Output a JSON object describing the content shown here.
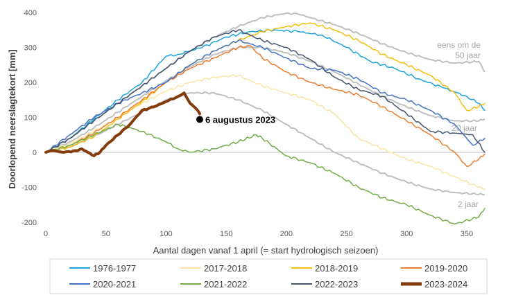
{
  "chart_data": {
    "type": "line",
    "title": "",
    "xlabel": "Aantal dagen vanaf 1 april (= start hydrologisch seizoen)",
    "ylabel": "Doorlopend neerslagtekort [mm]",
    "xlim": [
      0,
      365
    ],
    "ylim": [
      -200,
      400
    ],
    "xticks": [
      "0",
      "50",
      "100",
      "150",
      "200",
      "250",
      "300",
      "350"
    ],
    "yticks": [
      "-200",
      "-100",
      "0",
      "100",
      "200",
      "300",
      "400"
    ],
    "grid": false,
    "legend_position": "bottom",
    "percentile_curves": [
      {
        "label": "eens om de",
        "label2": "50 jaar",
        "color": "#bfbfbf",
        "x": [
          0,
          20,
          40,
          60,
          80,
          100,
          120,
          140,
          160,
          180,
          200,
          210,
          220,
          240,
          260,
          280,
          300,
          320,
          340,
          360,
          365
        ],
        "y": [
          0,
          40,
          90,
          140,
          190,
          240,
          290,
          330,
          360,
          385,
          398,
          395,
          385,
          365,
          340,
          310,
          285,
          265,
          255,
          260,
          230
        ]
      },
      {
        "label": "20 jaar",
        "color": "#bfbfbf",
        "x": [
          0,
          20,
          40,
          60,
          80,
          100,
          120,
          140,
          160,
          180,
          200,
          220,
          240,
          260,
          280,
          300,
          320,
          340,
          360,
          365
        ],
        "y": [
          0,
          30,
          70,
          115,
          160,
          205,
          245,
          280,
          300,
          300,
          285,
          260,
          230,
          195,
          160,
          130,
          105,
          90,
          90,
          95
        ]
      },
      {
        "label": "2 jaar",
        "color": "#bfbfbf",
        "x": [
          0,
          20,
          40,
          60,
          80,
          100,
          120,
          140,
          160,
          180,
          200,
          220,
          240,
          260,
          280,
          300,
          320,
          340,
          360,
          365
        ],
        "y": [
          0,
          15,
          45,
          80,
          115,
          150,
          170,
          170,
          150,
          120,
          80,
          40,
          0,
          -30,
          -60,
          -85,
          -105,
          -115,
          -120,
          -120
        ]
      }
    ],
    "series": [
      {
        "name": "1976-1977",
        "color": "#1ca3dc",
        "width": 1.5,
        "x": [
          0,
          20,
          40,
          60,
          80,
          100,
          110,
          130,
          150,
          170,
          190,
          210,
          230,
          250,
          270,
          290,
          310,
          330,
          350,
          360,
          365
        ],
        "y": [
          0,
          40,
          95,
          150,
          200,
          275,
          280,
          300,
          330,
          345,
          350,
          345,
          335,
          300,
          260,
          240,
          210,
          185,
          160,
          140,
          120
        ]
      },
      {
        "name": "2017-2018",
        "color": "#fbe5a6",
        "width": 1.5,
        "x": [
          0,
          20,
          40,
          60,
          80,
          100,
          120,
          140,
          160,
          180,
          200,
          220,
          240,
          260,
          280,
          300,
          320,
          340,
          360,
          365
        ],
        "y": [
          0,
          25,
          60,
          100,
          140,
          175,
          200,
          215,
          220,
          190,
          170,
          150,
          110,
          40,
          10,
          -20,
          -40,
          -70,
          -100,
          -105
        ]
      },
      {
        "name": "2018-2019",
        "color": "#f5be0f",
        "width": 1.5,
        "x": [
          0,
          20,
          40,
          60,
          80,
          100,
          120,
          140,
          160,
          180,
          200,
          220,
          240,
          260,
          280,
          300,
          320,
          340,
          350,
          360,
          365
        ],
        "y": [
          0,
          15,
          45,
          95,
          145,
          200,
          250,
          290,
          320,
          345,
          360,
          370,
          350,
          320,
          280,
          250,
          220,
          170,
          120,
          130,
          140
        ]
      },
      {
        "name": "2019-2020",
        "color": "#ed7d31",
        "width": 1.5,
        "x": [
          0,
          20,
          40,
          60,
          80,
          100,
          120,
          140,
          160,
          170,
          180,
          200,
          220,
          240,
          260,
          280,
          300,
          320,
          340,
          350,
          360,
          365
        ],
        "y": [
          0,
          20,
          55,
          100,
          150,
          200,
          240,
          270,
          300,
          305,
          270,
          230,
          200,
          180,
          165,
          130,
          90,
          50,
          0,
          -40,
          -20,
          -5
        ]
      },
      {
        "name": "2020-2021",
        "color": "#4472c4",
        "width": 1.5,
        "x": [
          0,
          20,
          40,
          60,
          80,
          100,
          120,
          140,
          160,
          180,
          200,
          220,
          240,
          260,
          280,
          300,
          320,
          340,
          355,
          365
        ],
        "y": [
          0,
          50,
          100,
          140,
          170,
          200,
          250,
          290,
          320,
          300,
          270,
          240,
          235,
          210,
          170,
          150,
          120,
          80,
          20,
          40
        ]
      },
      {
        "name": "2021-2022",
        "color": "#70ad47",
        "width": 1.5,
        "x": [
          0,
          20,
          40,
          60,
          80,
          100,
          110,
          120,
          140,
          160,
          175,
          180,
          200,
          220,
          240,
          260,
          280,
          300,
          320,
          340,
          360,
          365
        ],
        "y": [
          0,
          20,
          50,
          80,
          60,
          30,
          10,
          0,
          10,
          30,
          50,
          40,
          -10,
          -30,
          -60,
          -100,
          -130,
          -150,
          -180,
          -205,
          -185,
          -160
        ]
      },
      {
        "name": "2022-2023",
        "color": "#44546a",
        "width": 1.5,
        "x": [
          0,
          20,
          40,
          60,
          80,
          100,
          120,
          140,
          160,
          180,
          200,
          220,
          240,
          260,
          280,
          300,
          320,
          340,
          355,
          365
        ],
        "y": [
          0,
          40,
          90,
          140,
          190,
          240,
          290,
          330,
          350,
          320,
          300,
          265,
          215,
          180,
          160,
          110,
          60,
          55,
          50,
          0
        ]
      },
      {
        "name": "2023-2024",
        "color": "#843c0c",
        "width": 4,
        "x": [
          0,
          5,
          15,
          25,
          30,
          35,
          40,
          45,
          50,
          60,
          70,
          80,
          90,
          100,
          110,
          115,
          120,
          125,
          128
        ],
        "y": [
          0,
          5,
          0,
          5,
          10,
          0,
          -10,
          0,
          20,
          50,
          80,
          120,
          130,
          145,
          160,
          170,
          140,
          125,
          110
        ]
      }
    ],
    "annotations": {
      "point_label": "6 augustus 2023",
      "point_x": 128,
      "point_y": 110
    }
  }
}
